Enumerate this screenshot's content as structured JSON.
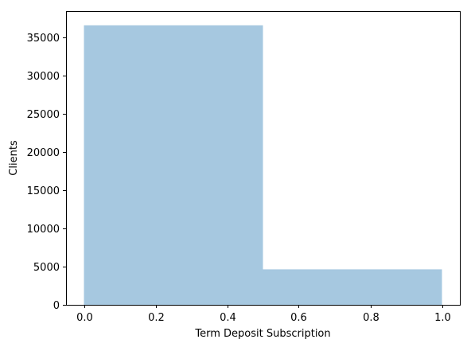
{
  "chart_data": {
    "type": "bar",
    "title": "",
    "xlabel": "Term Deposit Subscription",
    "ylabel": "Clients",
    "xlim": [
      -0.05,
      1.05
    ],
    "ylim": [
      0,
      38400
    ],
    "bins": [
      {
        "x0": 0.0,
        "x1": 0.5,
        "value": 36548
      },
      {
        "x0": 0.5,
        "x1": 1.0,
        "value": 4640
      }
    ],
    "x_ticks": [
      {
        "value": 0.0,
        "label": "0.0"
      },
      {
        "value": 0.2,
        "label": "0.2"
      },
      {
        "value": 0.4,
        "label": "0.4"
      },
      {
        "value": 0.6,
        "label": "0.6"
      },
      {
        "value": 0.8,
        "label": "0.8"
      },
      {
        "value": 1.0,
        "label": "1.0"
      }
    ],
    "y_ticks": [
      {
        "value": 0,
        "label": "0"
      },
      {
        "value": 5000,
        "label": "5000"
      },
      {
        "value": 10000,
        "label": "10000"
      },
      {
        "value": 15000,
        "label": "15000"
      },
      {
        "value": 20000,
        "label": "20000"
      },
      {
        "value": 25000,
        "label": "25000"
      },
      {
        "value": 30000,
        "label": "30000"
      },
      {
        "value": 35000,
        "label": "35000"
      }
    ],
    "grid": false,
    "legend": "none",
    "colors": {
      "bar": "#a6c8e0",
      "axis": "#000000"
    }
  }
}
